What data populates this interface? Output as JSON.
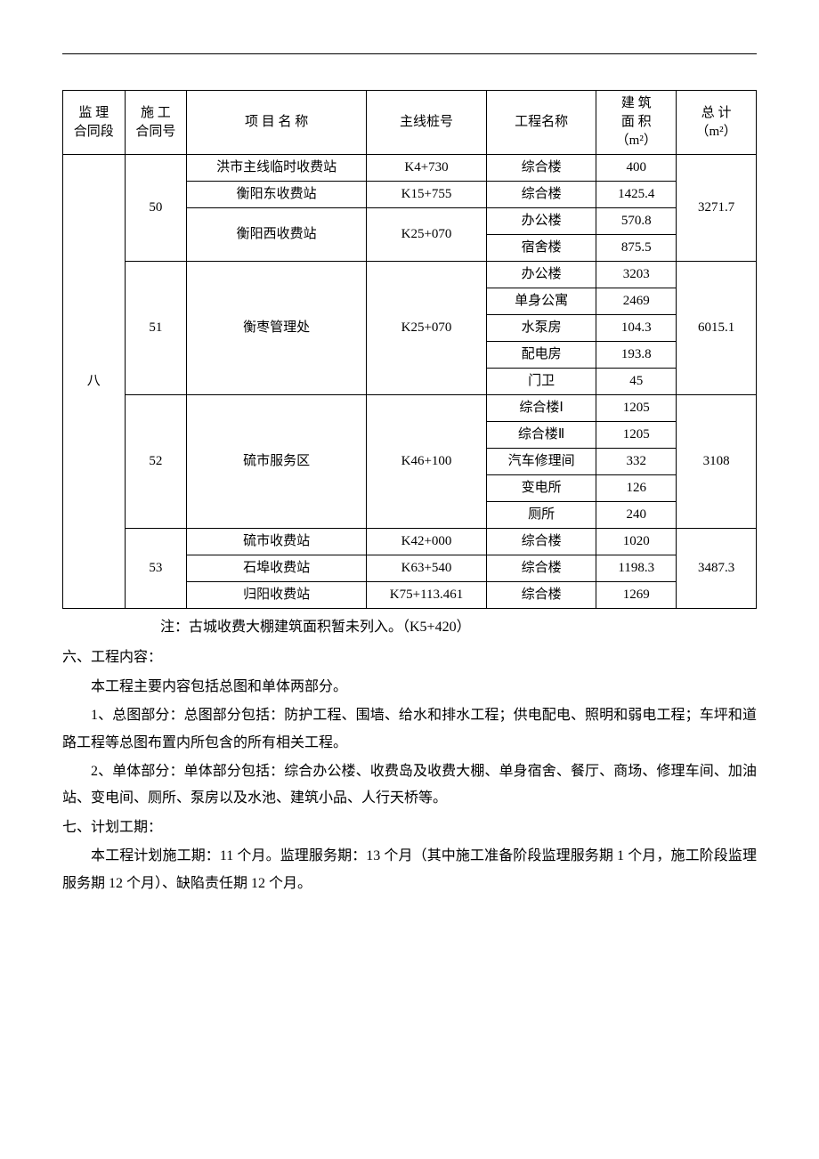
{
  "table": {
    "headers": {
      "supervision": "监 理\n合同段",
      "contract": "施 工\n合同号",
      "project": "项 目 名 称",
      "pile": "主线桩号",
      "engineering": "工程名称",
      "area": "建 筑\n面 积\n（m²）",
      "total": "总 计\n（m²）"
    },
    "supervision_section": "八",
    "groups": [
      {
        "contract_no": "50",
        "total": "3271.7",
        "rows": [
          {
            "project": "洪市主线临时收费站",
            "pile": "K4+730",
            "eng": "综合楼",
            "area": "400"
          },
          {
            "project": "衡阳东收费站",
            "pile": "K15+755",
            "eng": "综合楼",
            "area": "1425.4"
          },
          {
            "project": "衡阳西收费站",
            "pile": "K25+070",
            "eng": "办公楼",
            "area": "570.8"
          },
          {
            "project": "",
            "pile": "",
            "eng": "宿舍楼",
            "area": "875.5"
          }
        ]
      },
      {
        "contract_no": "51",
        "total": "6015.1",
        "rows": [
          {
            "project": "衡枣管理处",
            "pile": "K25+070",
            "eng": "办公楼",
            "area": "3203"
          },
          {
            "project": "",
            "pile": "",
            "eng": "单身公寓",
            "area": "2469"
          },
          {
            "project": "",
            "pile": "",
            "eng": "水泵房",
            "area": "104.3"
          },
          {
            "project": "",
            "pile": "",
            "eng": "配电房",
            "area": "193.8"
          },
          {
            "project": "",
            "pile": "",
            "eng": "门卫",
            "area": "45"
          }
        ]
      },
      {
        "contract_no": "52",
        "total": "3108",
        "rows": [
          {
            "project": "硫市服务区",
            "pile": "K46+100",
            "eng": "综合楼Ⅰ",
            "area": "1205"
          },
          {
            "project": "",
            "pile": "",
            "eng": "综合楼Ⅱ",
            "area": "1205"
          },
          {
            "project": "",
            "pile": "",
            "eng": "汽车修理间",
            "area": "332"
          },
          {
            "project": "",
            "pile": "",
            "eng": "变电所",
            "area": "126"
          },
          {
            "project": "",
            "pile": "",
            "eng": "厕所",
            "area": "240"
          }
        ]
      },
      {
        "contract_no": "53",
        "total": "3487.3",
        "rows": [
          {
            "project": "硫市收费站",
            "pile": "K42+000",
            "eng": "综合楼",
            "area": "1020"
          },
          {
            "project": "石埠收费站",
            "pile": "K63+540",
            "eng": "综合楼",
            "area": "1198.3"
          },
          {
            "project": "归阳收费站",
            "pile": "K75+113.461",
            "eng": "综合楼",
            "area": "1269"
          }
        ]
      }
    ]
  },
  "note": "注：古城收费大棚建筑面积暂未列入。（K5+420）",
  "section6": {
    "title": "六、工程内容：",
    "p0": "本工程主要内容包括总图和单体两部分。",
    "p1": "1、总图部分：总图部分包括：防护工程、围墙、给水和排水工程；供电配电、照明和弱电工程；车坪和道路工程等总图布置内所包含的所有相关工程。",
    "p2": "2、单体部分：单体部分包括：综合办公楼、收费岛及收费大棚、单身宿舍、餐厅、商场、修理车间、加油站、变电间、厕所、泵房以及水池、建筑小品、人行天桥等。"
  },
  "section7": {
    "title": "七、计划工期：",
    "p0": "本工程计划施工期：11 个月。监理服务期：13 个月（其中施工准备阶段监理服务期 1 个月，施工阶段监理服务期 12 个月）、缺陷责任期 12 个月。"
  }
}
